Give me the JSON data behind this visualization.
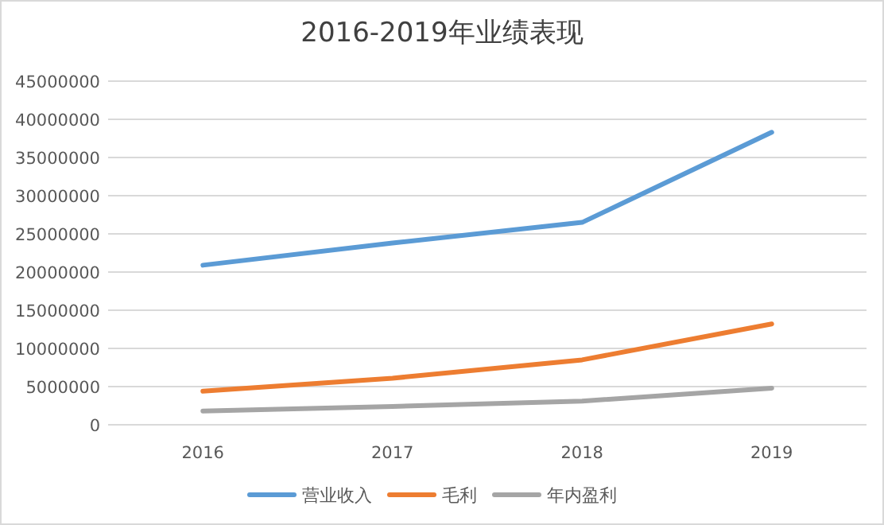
{
  "chart_data": {
    "type": "line",
    "title": "2016-2019年业绩表现",
    "categories": [
      "2016",
      "2017",
      "2018",
      "2019"
    ],
    "series": [
      {
        "name": "营业收入",
        "color": "#5b9bd5",
        "values": [
          20900000,
          23800000,
          26500000,
          38300000
        ]
      },
      {
        "name": "毛利",
        "color": "#ed7d31",
        "values": [
          4400000,
          6100000,
          8500000,
          13200000
        ]
      },
      {
        "name": "年内盈利",
        "color": "#a5a5a5",
        "values": [
          1800000,
          2400000,
          3100000,
          4800000
        ]
      }
    ],
    "ylim": [
      0,
      45000000
    ],
    "yticks": [
      0,
      5000000,
      10000000,
      15000000,
      20000000,
      25000000,
      30000000,
      35000000,
      40000000,
      45000000
    ],
    "grid": "y",
    "legend": "bottom",
    "marker": "none",
    "line_style": "solid"
  }
}
